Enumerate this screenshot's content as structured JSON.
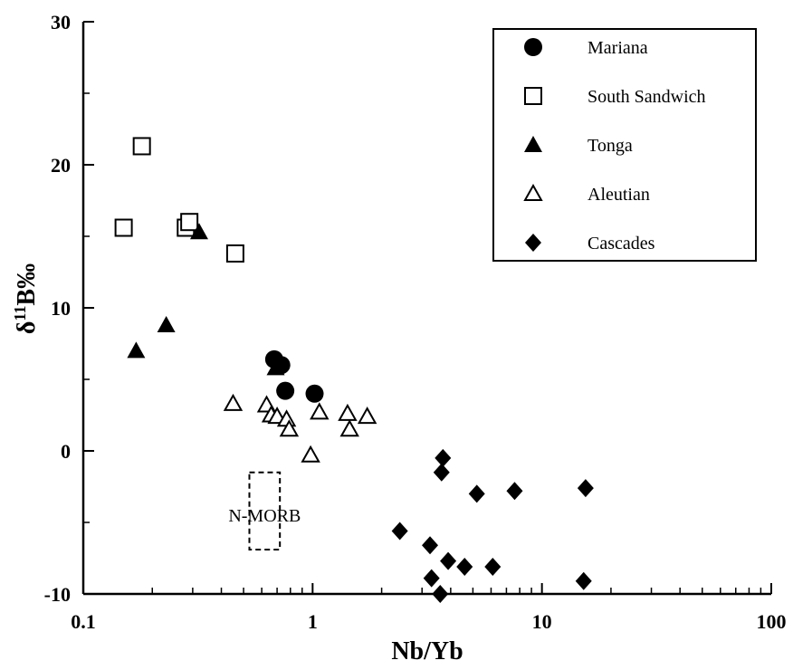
{
  "chart_data": {
    "type": "scatter",
    "xlabel": "Nb/Yb",
    "ylabel_main": "δ",
    "ylabel_sup": "11",
    "ylabel_rest": "B‰",
    "xscale": "log",
    "xlim": [
      0.1,
      100
    ],
    "ylim": [
      -10,
      30
    ],
    "x_tick_labels": [
      "0.1",
      "1",
      "10",
      "100"
    ],
    "x_tick_values": [
      0.1,
      1,
      10,
      100
    ],
    "y_tick_labels": [
      "30",
      "20",
      "10",
      "0",
      "-10"
    ],
    "y_tick_values": [
      30,
      20,
      10,
      0,
      -10
    ],
    "grid": false,
    "legend_position": "top-right",
    "series": [
      {
        "name": "Mariana",
        "marker": "filled-circle",
        "points": [
          [
            0.68,
            6.4
          ],
          [
            0.73,
            6.0
          ],
          [
            0.76,
            4.2
          ],
          [
            1.02,
            4.0
          ]
        ]
      },
      {
        "name": "South Sandwich",
        "marker": "open-square",
        "points": [
          [
            0.15,
            15.6
          ],
          [
            0.18,
            21.3
          ],
          [
            0.28,
            15.6
          ],
          [
            0.29,
            16.0
          ],
          [
            0.46,
            13.8
          ]
        ]
      },
      {
        "name": "Tonga",
        "marker": "filled-triangle",
        "points": [
          [
            0.32,
            15.3
          ],
          [
            0.17,
            7.0
          ],
          [
            0.23,
            8.8
          ],
          [
            0.69,
            5.8
          ]
        ]
      },
      {
        "name": "Aleutian",
        "marker": "open-triangle",
        "points": [
          [
            0.45,
            3.3
          ],
          [
            0.63,
            3.2
          ],
          [
            0.66,
            2.5
          ],
          [
            0.7,
            2.4
          ],
          [
            0.77,
            2.2
          ],
          [
            0.79,
            1.5
          ],
          [
            0.98,
            -0.3
          ],
          [
            1.07,
            2.7
          ],
          [
            1.42,
            2.6
          ],
          [
            1.45,
            1.5
          ],
          [
            1.73,
            2.4
          ]
        ]
      },
      {
        "name": "Cascades",
        "marker": "filled-diamond",
        "points": [
          [
            3.7,
            -0.5
          ],
          [
            3.65,
            -1.5
          ],
          [
            5.2,
            -3.0
          ],
          [
            7.6,
            -2.8
          ],
          [
            15.5,
            -2.6
          ],
          [
            2.4,
            -5.6
          ],
          [
            3.25,
            -6.6
          ],
          [
            3.9,
            -7.7
          ],
          [
            4.6,
            -8.1
          ],
          [
            6.1,
            -8.1
          ],
          [
            3.3,
            -8.9
          ],
          [
            3.6,
            -10.0
          ],
          [
            15.2,
            -9.1
          ]
        ]
      }
    ],
    "annotation": {
      "label": "N-MORB",
      "x_range": [
        0.53,
        0.72
      ],
      "y_range": [
        -6.9,
        -1.5
      ]
    }
  }
}
